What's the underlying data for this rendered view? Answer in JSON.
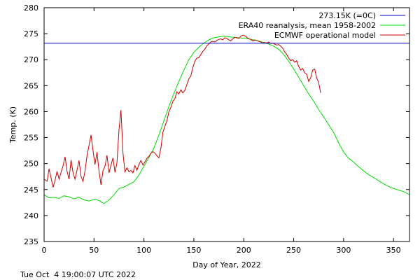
{
  "chart_data": {
    "type": "line",
    "xlabel": "Day of Year, 2022",
    "ylabel": "Temp. (K)",
    "xlim": [
      0,
      366
    ],
    "ylim": [
      235,
      280
    ],
    "xticks": [
      0,
      50,
      100,
      150,
      200,
      250,
      300,
      350
    ],
    "yticks": [
      235,
      240,
      245,
      250,
      255,
      260,
      265,
      270,
      275,
      280
    ],
    "grid": false,
    "legend": "top-right",
    "series": [
      {
        "name": "273.15K (=0C)",
        "color": "#0000cc",
        "x": [
          0,
          366
        ],
        "y": [
          273.15,
          273.15
        ]
      },
      {
        "name": "ERA40 reanalysis, mean 1958-2002",
        "color": "#00dd00",
        "x": [
          0,
          5,
          10,
          15,
          20,
          25,
          30,
          35,
          40,
          45,
          50,
          55,
          60,
          65,
          70,
          75,
          80,
          85,
          90,
          95,
          100,
          105,
          110,
          115,
          120,
          125,
          130,
          135,
          140,
          145,
          150,
          155,
          160,
          165,
          170,
          175,
          180,
          185,
          190,
          195,
          200,
          205,
          210,
          215,
          220,
          225,
          230,
          235,
          240,
          245,
          250,
          255,
          260,
          265,
          270,
          275,
          280,
          285,
          290,
          295,
          300,
          305,
          310,
          315,
          320,
          325,
          330,
          335,
          340,
          345,
          350,
          355,
          360,
          366
        ],
        "y": [
          244.0,
          243.4,
          243.5,
          243.3,
          243.8,
          243.6,
          243.2,
          243.5,
          243.0,
          242.8,
          243.1,
          242.9,
          242.3,
          243.0,
          244.0,
          245.2,
          245.5,
          246.0,
          246.5,
          247.8,
          249.5,
          251.2,
          253.0,
          255.5,
          258.2,
          261.0,
          263.5,
          265.8,
          268.0,
          270.0,
          271.4,
          272.4,
          273.2,
          273.8,
          274.2,
          274.4,
          274.5,
          274.4,
          274.3,
          274.2,
          274.1,
          274.0,
          273.8,
          273.6,
          273.3,
          273.0,
          272.6,
          272.0,
          271.0,
          269.7,
          268.2,
          266.6,
          265.0,
          263.4,
          262.0,
          260.4,
          259.0,
          257.5,
          256.0,
          254.0,
          252.2,
          251.0,
          250.3,
          249.4,
          248.6,
          247.9,
          247.3,
          246.7,
          246.1,
          245.6,
          245.2,
          244.9,
          244.6,
          244.0
        ]
      },
      {
        "name": "ECMWF operational model",
        "color": "#cc0000",
        "x": [
          0,
          3,
          5,
          7,
          9,
          11,
          13,
          15,
          17,
          19,
          21,
          23,
          25,
          27,
          29,
          31,
          33,
          35,
          37,
          39,
          41,
          43,
          45,
          47,
          49,
          51,
          53,
          55,
          57,
          59,
          61,
          63,
          65,
          67,
          69,
          71,
          73,
          75,
          77,
          79,
          81,
          83,
          85,
          87,
          89,
          91,
          93,
          95,
          97,
          99,
          101,
          103,
          105,
          107,
          109,
          111,
          113,
          115,
          117,
          119,
          121,
          123,
          125,
          127,
          129,
          131,
          133,
          135,
          137,
          139,
          141,
          143,
          145,
          147,
          149,
          151,
          153,
          155,
          157,
          159,
          161,
          163,
          165,
          167,
          169,
          171,
          173,
          175,
          177,
          179,
          181,
          183,
          185,
          187,
          189,
          191,
          193,
          195,
          197,
          199,
          201,
          203,
          205,
          207,
          209,
          211,
          213,
          215,
          217,
          219,
          221,
          223,
          225,
          227,
          229,
          231,
          233,
          235,
          237,
          239,
          241,
          243,
          245,
          247,
          249,
          251,
          253,
          255,
          257,
          259,
          261,
          263,
          265,
          267,
          269,
          271,
          273,
          275,
          277
        ],
        "y": [
          247.0,
          246.6,
          249.0,
          247.2,
          245.4,
          246.8,
          248.5,
          247.0,
          248.3,
          249.6,
          251.3,
          248.5,
          247.0,
          250.7,
          248.2,
          247.0,
          248.8,
          250.6,
          247.5,
          246.6,
          248.6,
          251.5,
          253.5,
          255.5,
          252.5,
          249.8,
          252.2,
          248.6,
          245.9,
          248.6,
          249.5,
          251.6,
          248.2,
          249.7,
          251.1,
          248.3,
          250.2,
          256.5,
          260.3,
          252.0,
          248.4,
          249.2,
          248.4,
          248.7,
          248.2,
          249.6,
          248.7,
          249.8,
          250.6,
          249.7,
          250.3,
          251.0,
          251.4,
          252.0,
          252.3,
          252.0,
          251.5,
          251.1,
          253.0,
          256.0,
          257.2,
          258.2,
          260.0,
          260.8,
          262.0,
          262.5,
          263.8,
          263.4,
          264.2,
          263.6,
          264.1,
          265.2,
          266.3,
          266.9,
          268.5,
          269.7,
          270.3,
          270.4,
          271.0,
          271.6,
          272.0,
          272.7,
          273.0,
          273.4,
          273.5,
          273.4,
          273.7,
          273.9,
          274.0,
          273.8,
          274.2,
          274.1,
          273.8,
          273.6,
          274.0,
          274.3,
          274.2,
          274.1,
          274.5,
          274.7,
          274.6,
          274.3,
          274.0,
          273.9,
          273.6,
          273.8,
          273.7,
          273.5,
          273.4,
          273.2,
          273.3,
          273.2,
          273.4,
          273.1,
          273.2,
          273.0,
          272.8,
          272.9,
          272.6,
          272.2,
          271.5,
          271.0,
          270.3,
          269.8,
          270.0,
          269.5,
          269.8,
          268.7,
          268.0,
          268.3,
          267.5,
          267.2,
          265.8,
          266.5,
          268.0,
          268.2,
          266.5,
          265.6,
          263.6
        ]
      }
    ]
  },
  "footer": {
    "timestamp": "Tue Oct  4 19:00:07 UTC 2022"
  }
}
